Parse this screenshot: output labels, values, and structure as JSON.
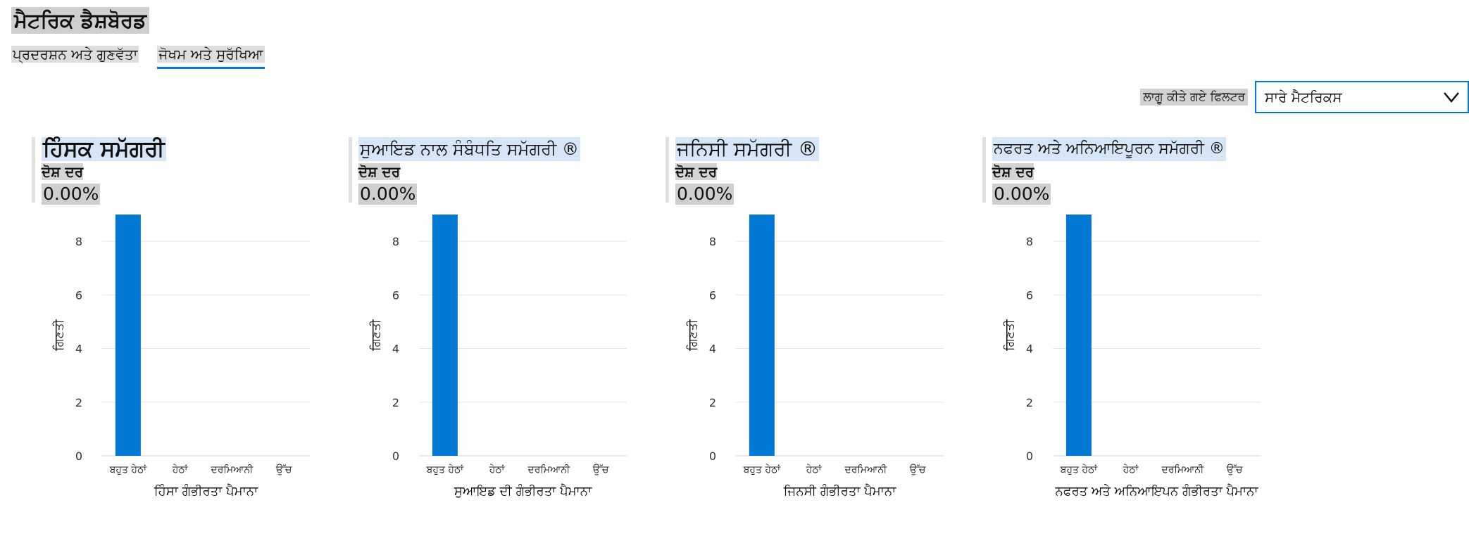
{
  "page": {
    "title": "ਮੈਟਰਿਕ ਡੈਸ਼ਬੋਰਡ"
  },
  "tabs": [
    {
      "label": "ਪ੍ਰਦਰਸ਼ਨ ਅਤੇ ਗੁਣਵੱਤਾ",
      "active": false
    },
    {
      "label": "ਜੋਖਮ ਅਤੇ ਸੁਰੱਖਿਆ",
      "active": true
    }
  ],
  "filter": {
    "label": "ਲਾਗੂ ਕੀਤੇ ਗਏ ਫਿਲਟਰ",
    "value": "ਸਾਰੇ ਮੈਟਰਿਕਸ",
    "icon": "chevron-down-icon"
  },
  "colors": {
    "accent": "#0078d4",
    "bar": "#0078d4",
    "grid": "#e6e6e6"
  },
  "chart_data": [
    {
      "type": "bar",
      "title": "ਹਿੰਸਕ ਸਮੱਗਰੀ",
      "subtitle": "ਦੋਸ਼ ਦਰ",
      "metric_value": "0.00%",
      "categories": [
        "ਬਹੁਤ ਹੇਠਾਂ",
        "ਹੇਠਾਂ",
        "ਦਰਮਿਆਨੀ",
        "ਉੱਚ"
      ],
      "values": [
        9,
        0,
        0,
        0
      ],
      "ylabel": "ਗਿਣਤੀ",
      "xlabel": "ਹਿੰਸਾ ਗੰਭੀਰਤਾ ਪੈਮਾਨਾ",
      "yticks": [
        "0",
        "2",
        "4",
        "6",
        "8"
      ],
      "ylim": [
        0,
        9
      ]
    },
    {
      "type": "bar",
      "title": "ਸੁਆਇਡ ਨਾਲ ਸੰਬੰਧਤਿ ਸਮੱਗਰੀ ®",
      "subtitle": "ਦੋਸ਼ ਦਰ",
      "metric_value": "0.00%",
      "categories": [
        "ਬਹੁਤ ਹੇਠਾਂ",
        "ਹੇਠਾਂ",
        "ਦਰਮਿਆਨੀ",
        "ਉੱਚ"
      ],
      "values": [
        9,
        0,
        0,
        0
      ],
      "ylabel": "ਗਿਣਤੀ",
      "xlabel": "ਸੁਆਇਡ ਦੀ ਗੰਭੀਰਤਾ ਪੈਮਾਨਾ",
      "yticks": [
        "0",
        "2",
        "4",
        "6",
        "8"
      ],
      "ylim": [
        0,
        9
      ]
    },
    {
      "type": "bar",
      "title": "ਜਨਿਸੀ ਸਮੱਗਰੀ ®",
      "subtitle": "ਦੋਸ਼ ਦਰ",
      "metric_value": "0.00%",
      "categories": [
        "ਬਹੁਤ ਹੇਠਾਂ",
        "ਹੇਠਾਂ",
        "ਦਰਮਿਆਨੀ",
        "ਉੱਚ"
      ],
      "values": [
        9,
        0,
        0,
        0
      ],
      "ylabel": "ਗਿਣਤੀ",
      "xlabel": "ਜਿਨਸੀ ਗੰਭੀਰਤਾ ਪੈਮਾਨਾ",
      "yticks": [
        "0",
        "2",
        "4",
        "6",
        "8"
      ],
      "ylim": [
        0,
        9
      ]
    },
    {
      "type": "bar",
      "title": "ਨਫਰਤ ਅਤੇ ਅਨਿਆਇਪੂਰਨ ਸਮੱਗਰੀ ®",
      "subtitle": "ਦੋਸ਼ ਦਰ",
      "metric_value": "0.00%",
      "categories": [
        "ਬਹੁਤ ਹੇਠਾਂ",
        "ਹੇਠਾਂ",
        "ਦਰਮਿਆਨੀ",
        "ਉੱਚ"
      ],
      "values": [
        9,
        0,
        0,
        0
      ],
      "ylabel": "ਗਿਣਤੀ",
      "xlabel": "ਨਫਰਤ ਅਤੇ ਅਨਿਆਇਪਨ ਗੰਭੀਰਤਾ ਪੈਮਾਨਾ",
      "yticks": [
        "0",
        "2",
        "4",
        "6",
        "8"
      ],
      "ylim": [
        0,
        9
      ]
    }
  ]
}
